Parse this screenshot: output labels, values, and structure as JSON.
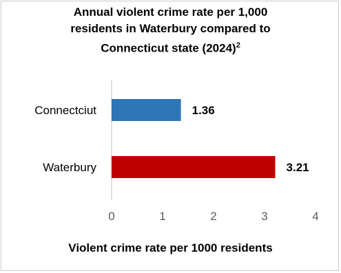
{
  "chart_data": {
    "type": "bar",
    "orientation": "horizontal",
    "title_lines": [
      "Annual violent crime rate per 1,000",
      "residents in Waterbury compared to",
      "Connecticut state (2024)"
    ],
    "title_superscript": "2",
    "categories": [
      "Connectciut",
      "Waterbury"
    ],
    "values": [
      1.36,
      3.21
    ],
    "value_labels": [
      "1.36",
      "3.21"
    ],
    "bar_colors": [
      "#2e75b6",
      "#c00000"
    ],
    "xlabel": "Violent crime rate per 1000 residents",
    "ylabel": "",
    "xlim": [
      0,
      4
    ],
    "xticks": [
      "0",
      "1",
      "2",
      "3",
      "4"
    ],
    "grid": false,
    "legend": "none"
  }
}
